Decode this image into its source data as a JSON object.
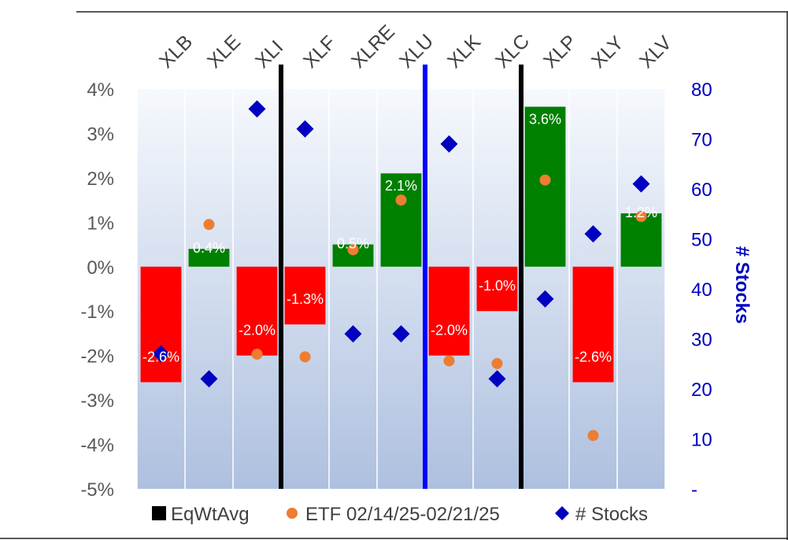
{
  "chart_data": {
    "type": "bar",
    "categories": [
      "XLB",
      "XLE",
      "XLI",
      "XLF",
      "XLRE",
      "XLU",
      "XLK",
      "XLC",
      "XLP",
      "XLY",
      "XLV"
    ],
    "series": [
      {
        "name": "EqWtAvg",
        "type": "bar",
        "values": [
          -2.6,
          0.4,
          -2.0,
          -1.3,
          0.5,
          2.1,
          -2.0,
          -1.0,
          3.6,
          -2.6,
          1.2
        ],
        "labels": [
          "-2.6%",
          "0.4%",
          "-2.0%",
          "-1.3%",
          "0.5%",
          "2.1%",
          "-2.0%",
          "-1.0%",
          "3.6%",
          "-2.6%",
          "1.2%"
        ],
        "axis": "left"
      },
      {
        "name": "ETF 02/14/25-02/21/25",
        "type": "scatter",
        "values": [
          -2.0,
          0.95,
          -1.97,
          -2.03,
          0.38,
          1.5,
          -2.12,
          -2.18,
          1.95,
          -3.8,
          1.13
        ],
        "axis": "left"
      },
      {
        "name": "# Stocks",
        "type": "scatter",
        "values": [
          27,
          22,
          76,
          72,
          31,
          31,
          69,
          22,
          38,
          51,
          61
        ],
        "axis": "right"
      }
    ],
    "y_left": {
      "ylim": [
        -5,
        4
      ],
      "ticks": [
        4,
        3,
        2,
        1,
        0,
        -1,
        -2,
        -3,
        -4,
        -5
      ],
      "tick_labels": [
        "4%",
        "3%",
        "2%",
        "1%",
        "0%",
        "-1%",
        "-2%",
        "-3%",
        "-4%",
        "-5%"
      ]
    },
    "y_right": {
      "label": "# Stocks",
      "ylim": [
        0,
        80
      ],
      "ticks": [
        80,
        70,
        60,
        50,
        40,
        30,
        20,
        10,
        0
      ],
      "tick_labels": [
        "80",
        "70",
        "60",
        "50",
        "40",
        "30",
        "20",
        "10",
        "-"
      ]
    },
    "separators_after": [
      {
        "between": [
          "XLI",
          "XLF"
        ],
        "color": "#000000"
      },
      {
        "between": [
          "XLU",
          "XLK"
        ],
        "color": "#0000ff"
      },
      {
        "between": [
          "XLC",
          "XLP"
        ],
        "color": "#000000"
      }
    ],
    "grid": "vertical",
    "legend_position": "bottom",
    "colors": {
      "positive": "#008000",
      "negative": "#ff0000",
      "etf": "#ed7d31",
      "stocks": "#0000c0",
      "left_tick": "#595959",
      "right_tick": "#0000c0",
      "legend_bar": "#000000"
    }
  }
}
